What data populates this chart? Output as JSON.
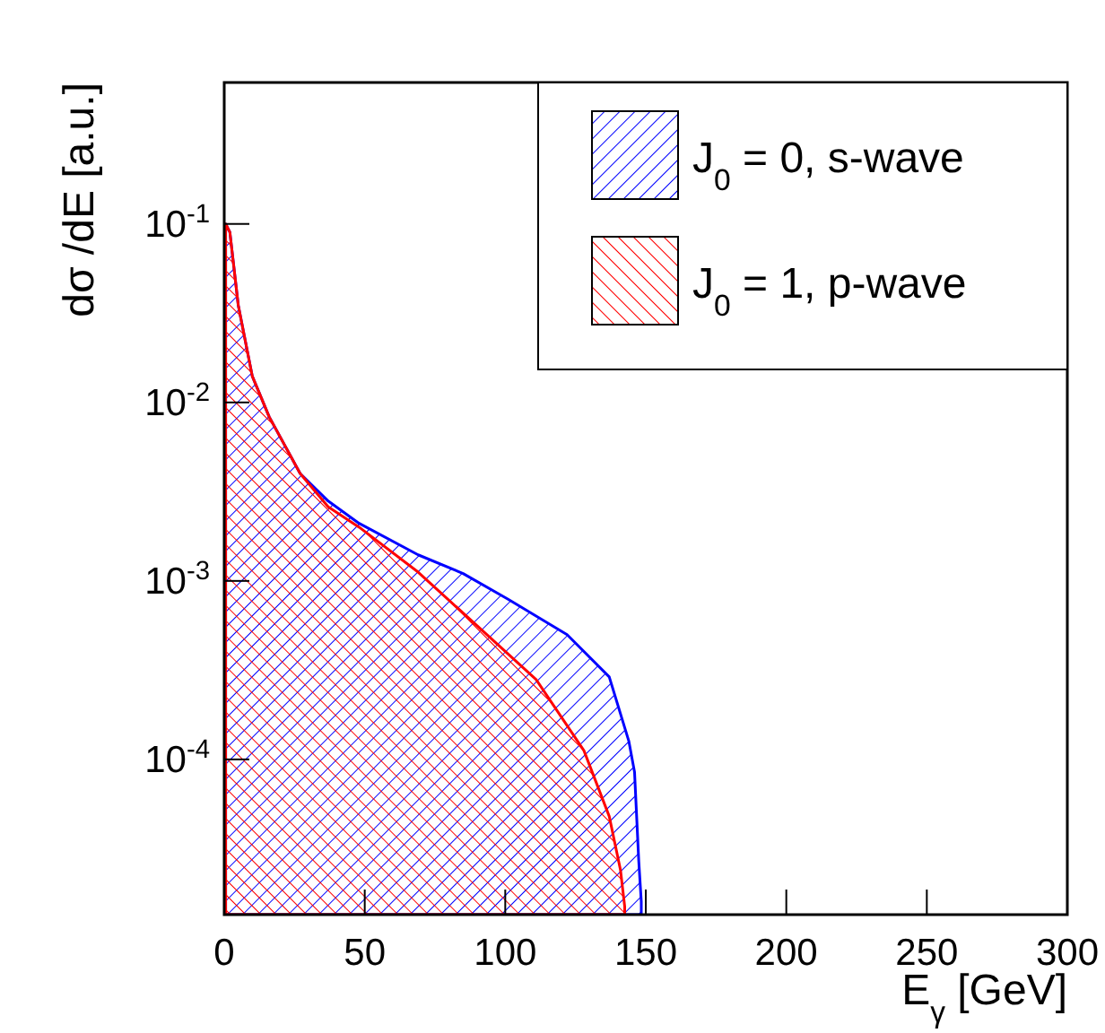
{
  "chart_data": {
    "type": "area",
    "xlabel": "E$_{γ}$ [GeV]",
    "ylabel": "dσ /dE [a.u.]",
    "xlim": [
      0,
      300
    ],
    "xticks": [
      0,
      50,
      100,
      150,
      200,
      250,
      300
    ],
    "ylim": [
      1.35e-05,
      0.62
    ],
    "log": true,
    "yticks": [
      {
        "value": 0.0001,
        "label": "10$^{-4}$"
      },
      {
        "value": 0.001,
        "label": "10$^{-3}$"
      },
      {
        "value": 0.01,
        "label": "10$^{-2}$"
      },
      {
        "value": 0.1,
        "label": "10$^{-1}$"
      }
    ],
    "grid": false,
    "legend": "top right",
    "series": [
      {
        "name": "J$_{0}$ = 0, s-wave",
        "color": "#0000ff",
        "x": [
          0.5,
          2,
          5,
          10,
          16,
          27,
          37,
          48,
          69,
          85,
          101,
          122,
          137,
          144,
          146,
          147.5,
          148.4
        ],
        "values": [
          0.1,
          0.09,
          0.035,
          0.014,
          0.0083,
          0.004,
          0.0028,
          0.0021,
          0.0014,
          0.0011,
          0.00079,
          0.0005,
          0.00029,
          0.000126,
          8.5e-05,
          2.7e-05,
          1.6e-05
        ]
      },
      {
        "name": "J$_{0}$ = 1, p-wave",
        "color": "#ff0000",
        "x": [
          0.5,
          2,
          5,
          10,
          16,
          27,
          37,
          48,
          69,
          90,
          111,
          128,
          137,
          141,
          142.5
        ],
        "values": [
          0.1,
          0.09,
          0.035,
          0.014,
          0.0083,
          0.004,
          0.0026,
          0.002,
          0.00112,
          0.00056,
          0.00028,
          0.000112,
          4.8e-05,
          2.4e-05,
          1.5e-05
        ]
      }
    ]
  }
}
